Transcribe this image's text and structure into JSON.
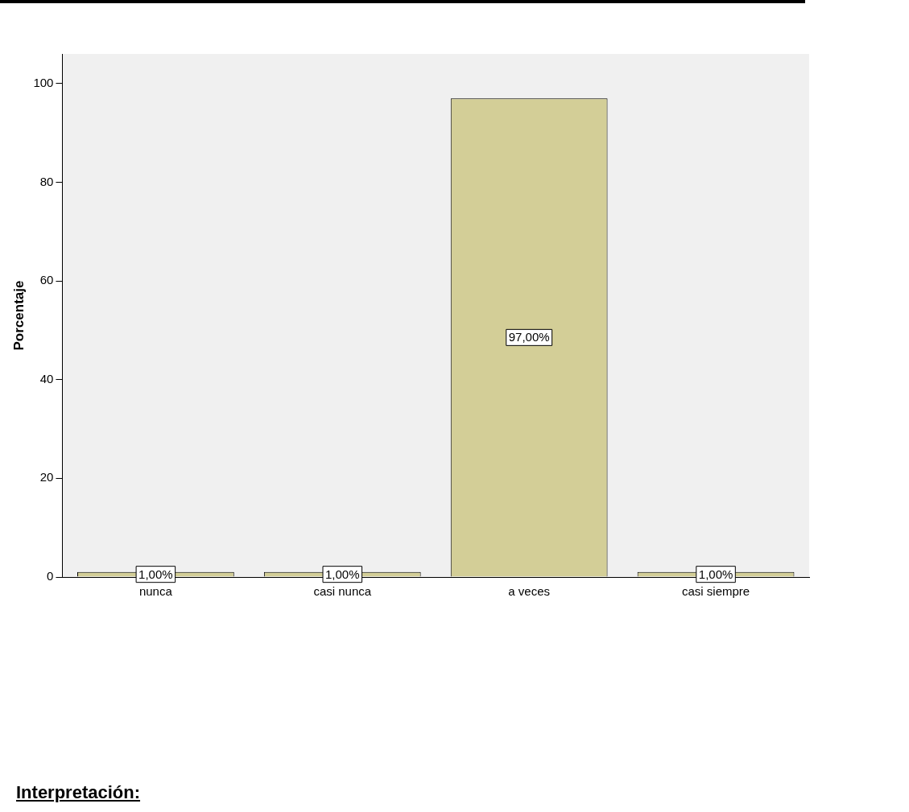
{
  "chart_data": {
    "type": "bar",
    "ylabel": "Porcentaje",
    "categories": [
      "nunca",
      "casi nunca",
      "a veces",
      "casi siempre"
    ],
    "values": [
      1,
      1,
      97,
      1
    ],
    "color": "#d3ce97",
    "value_labels": [
      "1,00%",
      "1,00%",
      "97,00%",
      "1,00%"
    ],
    "ylim": [
      0,
      106
    ],
    "yticks": [
      0,
      20,
      40,
      60,
      80,
      100
    ],
    "grid": false,
    "legend": false,
    "annotations": [
      "Interpretación:"
    ]
  }
}
